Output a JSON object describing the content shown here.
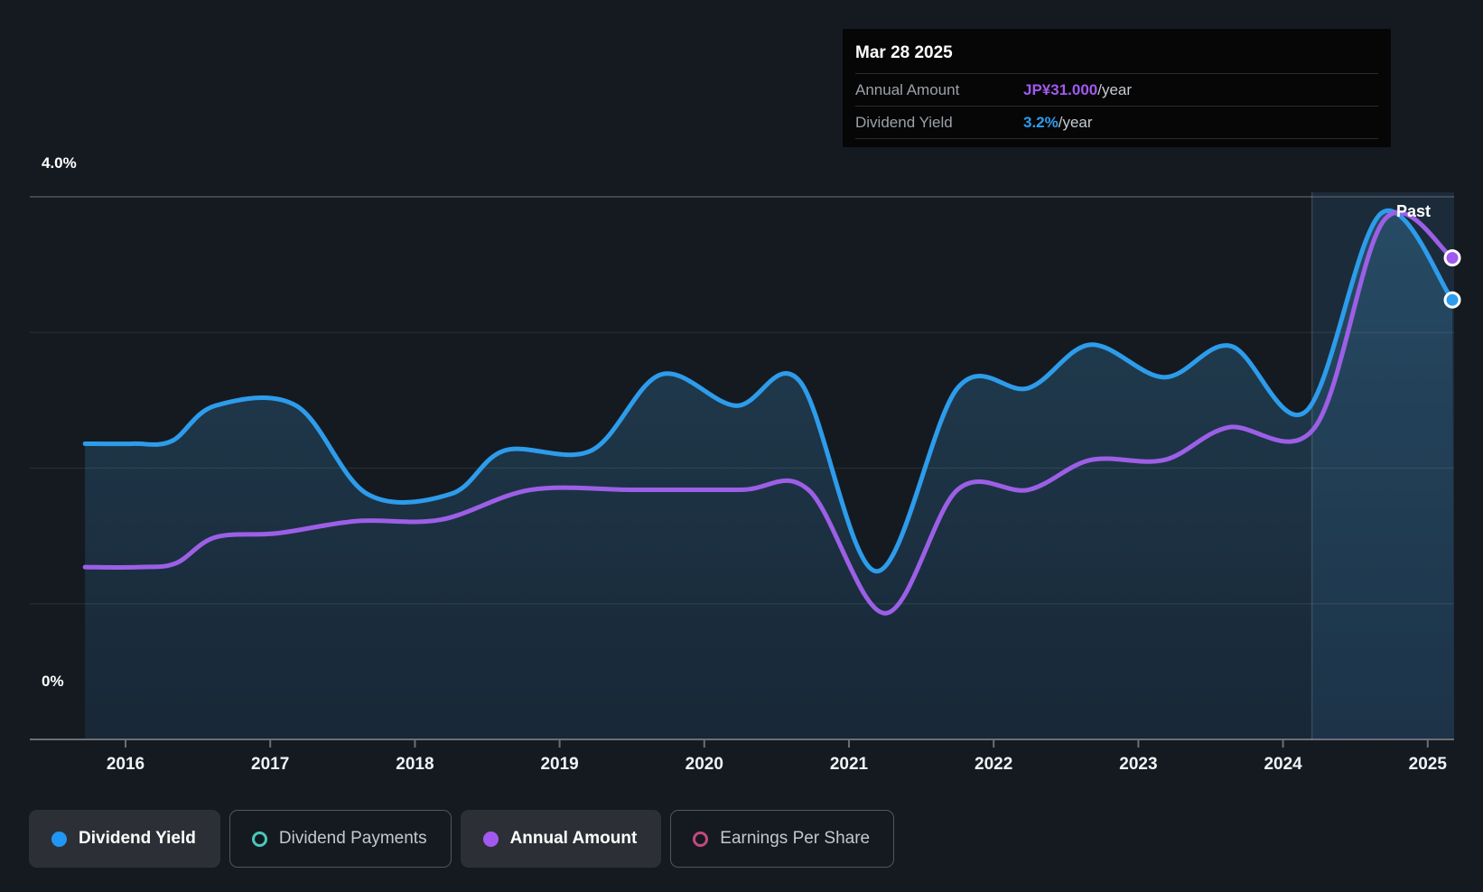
{
  "page": {
    "background": "#151A21"
  },
  "tooltip": {
    "date": "Mar 28 2025",
    "rows": [
      {
        "label": "Annual Amount",
        "value": "JP¥31.000",
        "suffix": "/year",
        "color": "#a259f0"
      },
      {
        "label": "Dividend Yield",
        "value": "3.2%",
        "suffix": "/year",
        "color": "#2d9ceb"
      }
    ]
  },
  "legend": {
    "items": [
      {
        "label": "Dividend Yield",
        "variant": "solid",
        "marker": "filled-dot",
        "color": "#2196f3"
      },
      {
        "label": "Dividend Payments",
        "variant": "outline",
        "marker": "hollow-circle",
        "color": "#49c8bc"
      },
      {
        "label": "Annual Amount",
        "variant": "solid",
        "marker": "filled-dot",
        "color": "#a259f0"
      },
      {
        "label": "Earnings Per Share",
        "variant": "outline",
        "marker": "hollow-circle",
        "color": "#c4487f"
      }
    ]
  },
  "chart_data": {
    "type": "line",
    "past_label": "Past",
    "past_divider_year": 2024.2,
    "y_axis": {
      "unit": "%",
      "min": 0,
      "max": 4,
      "top_label": "4.0%",
      "bottom_label": "0%",
      "gridlines_pct": [
        4,
        3,
        2,
        1,
        0
      ]
    },
    "x_axis": {
      "ticks": [
        "2016",
        "2017",
        "2018",
        "2019",
        "2020",
        "2021",
        "2022",
        "2023",
        "2024",
        "2025"
      ],
      "start_year": 2015.72,
      "end_year": 2025.17
    },
    "series": [
      {
        "name": "Dividend Yield",
        "color": "#2d9ceb",
        "marker_color": "#2d9ceb",
        "unit": "%",
        "latest_value_label": "3.2%/year",
        "points": [
          [
            2015.72,
            2.18
          ],
          [
            2016.05,
            2.18
          ],
          [
            2016.32,
            2.2
          ],
          [
            2016.62,
            2.46
          ],
          [
            2017.18,
            2.46
          ],
          [
            2017.67,
            1.81
          ],
          [
            2018.25,
            1.81
          ],
          [
            2018.62,
            2.13
          ],
          [
            2019.22,
            2.13
          ],
          [
            2019.7,
            2.69
          ],
          [
            2020.22,
            2.46
          ],
          [
            2020.66,
            2.64
          ],
          [
            2021.19,
            1.24
          ],
          [
            2021.75,
            2.59
          ],
          [
            2022.24,
            2.59
          ],
          [
            2022.67,
            2.91
          ],
          [
            2023.18,
            2.67
          ],
          [
            2023.64,
            2.9
          ],
          [
            2024.16,
            2.42
          ],
          [
            2024.68,
            3.88
          ],
          [
            2025.17,
            3.24
          ]
        ]
      },
      {
        "name": "Annual Amount",
        "color": "#9c5fe6",
        "marker_color": "#a259f0",
        "unit": "canvas-% (JP¥ series; latest value JP¥31.000/year)",
        "latest_value_label": "JP¥31.000/year",
        "points": [
          [
            2015.72,
            1.27
          ],
          [
            2016.1,
            1.27
          ],
          [
            2016.35,
            1.3
          ],
          [
            2016.62,
            1.49
          ],
          [
            2017.05,
            1.52
          ],
          [
            2017.6,
            1.61
          ],
          [
            2018.18,
            1.62
          ],
          [
            2018.8,
            1.84
          ],
          [
            2019.5,
            1.84
          ],
          [
            2020.25,
            1.84
          ],
          [
            2020.72,
            1.84
          ],
          [
            2021.25,
            0.93
          ],
          [
            2021.75,
            1.84
          ],
          [
            2022.24,
            1.84
          ],
          [
            2022.67,
            2.06
          ],
          [
            2023.18,
            2.06
          ],
          [
            2023.62,
            2.3
          ],
          [
            2024.22,
            2.3
          ],
          [
            2024.7,
            3.83
          ],
          [
            2025.17,
            3.55
          ]
        ]
      }
    ],
    "legend_position": "bottom",
    "grid": true
  }
}
